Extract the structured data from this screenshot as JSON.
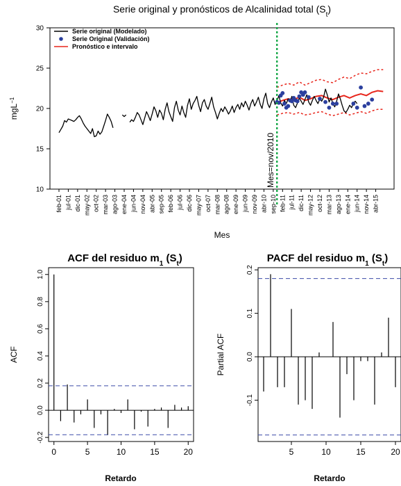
{
  "chart_data": [
    {
      "type": "line",
      "title": "Serie original y pronósticos de Alcalinidad total (S",
      "title_sub": "t",
      "title_tail": ")",
      "xlabel": "Mes",
      "ylabel": "mgL",
      "ylabel_sup": "−1",
      "ylim": [
        10,
        30
      ],
      "yticks": [
        10,
        15,
        20,
        25,
        30
      ],
      "x_tick_labels": [
        "feb-01",
        "jul-01",
        "dic-01",
        "may-02",
        "oct-02",
        "mar-03",
        "ago-03",
        "ene-04",
        "jun-04",
        "nov-04",
        "abr-05",
        "sep-05",
        "feb-06",
        "jul-06",
        "dic-06",
        "may-07",
        "oct-07",
        "mar-08",
        "ago-08",
        "ene-09",
        "jun-09",
        "nov-09",
        "abr-10",
        "sep-10",
        "feb-11",
        "jul-11",
        "dic-11",
        "may-12",
        "oct-12",
        "mar-13",
        "ago-13",
        "ene-14",
        "jun-14",
        "nov-14",
        "abr-15"
      ],
      "annotation": "Mes=nov/2010",
      "cut_index": 117,
      "legend": {
        "placement": "top-left",
        "entries": [
          "Serie original (Modelado)",
          "Serie Original (Validación)",
          "Pronóstico e intervalo"
        ]
      },
      "colors": {
        "original": "#000000",
        "validation": "#2b3f9e",
        "forecast": "#e8261c",
        "cut_line": "#19a84a"
      },
      "series_original": [
        17.0,
        17.4,
        17.8,
        18.5,
        18.3,
        18.7,
        18.6,
        18.5,
        18.4,
        18.6,
        18.9,
        19.1,
        18.7,
        18.2,
        17.8,
        17.5,
        17.2,
        16.9,
        17.5,
        16.5,
        16.6,
        17.2,
        16.8,
        17.1,
        17.8,
        18.5,
        19.3,
        18.9,
        18.4,
        17.6,
        null,
        null,
        null,
        null,
        19.2,
        19.0,
        19.2,
        null,
        18.3,
        18.6,
        18.4,
        18.9,
        19.5,
        19.2,
        18.6,
        18.0,
        18.8,
        19.6,
        19.1,
        18.5,
        19.3,
        20.2,
        19.7,
        18.9,
        19.8,
        19.4,
        18.6,
        19.9,
        20.7,
        19.6,
        19.0,
        18.4,
        20.1,
        20.9,
        19.8,
        19.2,
        20.3,
        19.5,
        18.9,
        20.4,
        21.2,
        19.9,
        20.6,
        21.0,
        21.5,
        20.4,
        19.6,
        20.7,
        21.1,
        20.3,
        19.9,
        20.6,
        21.4,
        20.2,
        19.5,
        18.7,
        19.4,
        20.0,
        19.6,
        20.2,
        19.8,
        19.3,
        19.7,
        20.3,
        19.5,
        20.1,
        20.5,
        19.9,
        20.7,
        20.2,
        20.9,
        20.4,
        19.8,
        20.6,
        21.1,
        20.3,
        20.8,
        21.4,
        20.5,
        20.0,
        21.2,
        21.9,
        20.6,
        20.1,
        20.8,
        21.3,
        20.5,
        20.9,
        21.6,
        20.7,
        20.3,
        21.0,
        20.6,
        21.2,
        20.8,
        21.5,
        20.4,
        20.1,
        20.7,
        21.3,
        20.9,
        20.5,
        21.1,
        21.7,
        20.8,
        20.4,
        21.0,
        21.5,
        21.0,
        20.6,
        21.2,
        20.9,
        21.4,
        22.4,
        21.7,
        20.8,
        21.3,
        20.6,
        20.2,
        20.9,
        21.8,
        21.2,
        20.4,
        19.7,
        19.5,
        19.9,
        20.4,
        20.1,
        20.6,
        20.9,
        20.6
      ],
      "series_validation": [
        [
          117,
          20.8
        ],
        [
          118,
          20.7
        ],
        [
          119,
          21.6
        ],
        [
          120,
          21.9
        ],
        [
          121,
          20.6
        ],
        [
          122,
          20.1
        ],
        [
          123,
          20.3
        ],
        [
          124,
          21.0
        ],
        [
          125,
          20.9
        ],
        [
          126,
          21.3
        ],
        [
          127,
          21.0
        ],
        [
          128,
          20.9
        ],
        [
          129,
          21.5
        ],
        [
          130,
          22.0
        ],
        [
          131,
          21.7
        ],
        [
          132,
          22.0
        ],
        [
          134,
          21.4
        ],
        [
          140,
          21.2
        ],
        [
          143,
          20.8
        ],
        [
          145,
          20.1
        ],
        [
          147,
          20.6
        ],
        [
          149,
          20.6
        ],
        [
          158,
          20.6
        ],
        [
          160,
          20.1
        ],
        [
          162,
          22.6
        ],
        [
          164,
          20.3
        ],
        [
          166,
          20.6
        ],
        [
          168,
          21.1
        ]
      ],
      "forecast": [
        [
          117,
          20.7
        ],
        [
          120,
          21.0
        ],
        [
          123,
          21.2
        ],
        [
          126,
          21.1
        ],
        [
          129,
          21.4
        ],
        [
          132,
          21.0
        ],
        [
          135,
          21.2
        ],
        [
          138,
          21.5
        ],
        [
          141,
          21.6
        ],
        [
          144,
          21.3
        ],
        [
          147,
          21.1
        ],
        [
          150,
          21.4
        ],
        [
          153,
          21.6
        ],
        [
          156,
          21.3
        ],
        [
          159,
          21.6
        ],
        [
          162,
          21.8
        ],
        [
          165,
          21.6
        ],
        [
          168,
          22.0
        ],
        [
          171,
          22.2
        ],
        [
          174,
          22.1
        ]
      ],
      "forecast_upper": [
        [
          117,
          22.6
        ],
        [
          120,
          22.9
        ],
        [
          123,
          23.1
        ],
        [
          126,
          22.9
        ],
        [
          129,
          23.3
        ],
        [
          132,
          22.9
        ],
        [
          135,
          23.2
        ],
        [
          138,
          23.5
        ],
        [
          141,
          23.6
        ],
        [
          144,
          23.3
        ],
        [
          147,
          23.2
        ],
        [
          150,
          23.6
        ],
        [
          153,
          23.9
        ],
        [
          156,
          23.7
        ],
        [
          159,
          24.1
        ],
        [
          162,
          24.4
        ],
        [
          165,
          24.3
        ],
        [
          168,
          24.6
        ],
        [
          171,
          24.8
        ],
        [
          174,
          24.8
        ]
      ],
      "forecast_lower": [
        [
          117,
          19.2
        ],
        [
          120,
          19.4
        ],
        [
          123,
          19.5
        ],
        [
          126,
          19.3
        ],
        [
          129,
          19.5
        ],
        [
          132,
          19.2
        ],
        [
          135,
          19.3
        ],
        [
          138,
          19.5
        ],
        [
          141,
          19.6
        ],
        [
          144,
          19.3
        ],
        [
          147,
          19.1
        ],
        [
          150,
          19.3
        ],
        [
          153,
          19.5
        ],
        [
          156,
          19.2
        ],
        [
          159,
          19.4
        ],
        [
          162,
          19.6
        ],
        [
          165,
          19.4
        ],
        [
          168,
          19.7
        ],
        [
          171,
          19.9
        ],
        [
          174,
          19.9
        ]
      ]
    },
    {
      "type": "bar",
      "title": "ACF del residuo m",
      "title_sub1": "1",
      "title_mid": " (S",
      "title_sub2": "t",
      "title_tail": ")",
      "xlabel": "Retardo",
      "ylabel": "ACF",
      "xlim": [
        -0.8,
        20.8
      ],
      "ylim": [
        -0.23,
        1.05
      ],
      "xticks": [
        0,
        5,
        10,
        15,
        20
      ],
      "yticks": [
        -0.2,
        0.0,
        0.2,
        0.4,
        0.6,
        0.8,
        1.0
      ],
      "lags": [
        0,
        1,
        2,
        3,
        4,
        5,
        6,
        7,
        8,
        9,
        10,
        11,
        12,
        13,
        14,
        15,
        16,
        17,
        18,
        19,
        20
      ],
      "values": [
        1.0,
        -0.08,
        0.19,
        -0.09,
        -0.03,
        0.08,
        -0.13,
        -0.03,
        -0.18,
        0.01,
        -0.02,
        0.08,
        -0.14,
        -0.01,
        -0.12,
        0.01,
        0.02,
        -0.13,
        0.04,
        0.02,
        0.03
      ],
      "ci": 0.18
    },
    {
      "type": "bar",
      "title": "PACF del residuo m",
      "title_sub1": "1",
      "title_mid": " (S",
      "title_sub2": "t",
      "title_tail": ")",
      "xlabel": "Retardo",
      "ylabel": "Partial ACF",
      "xlim": [
        0.2,
        20.8
      ],
      "ylim": [
        -0.195,
        0.205
      ],
      "xticks": [
        5,
        10,
        15,
        20
      ],
      "yticks": [
        -0.1,
        0.0,
        0.1,
        0.2
      ],
      "lags": [
        1,
        2,
        3,
        4,
        5,
        6,
        7,
        8,
        9,
        10,
        11,
        12,
        13,
        14,
        15,
        16,
        17,
        18,
        19,
        20
      ],
      "values": [
        -0.08,
        0.19,
        -0.07,
        -0.07,
        0.11,
        -0.11,
        -0.1,
        -0.12,
        0.01,
        0.0,
        0.08,
        -0.14,
        -0.04,
        -0.1,
        -0.01,
        -0.01,
        -0.11,
        0.01,
        0.09,
        -0.07
      ],
      "ci": 0.18
    }
  ]
}
